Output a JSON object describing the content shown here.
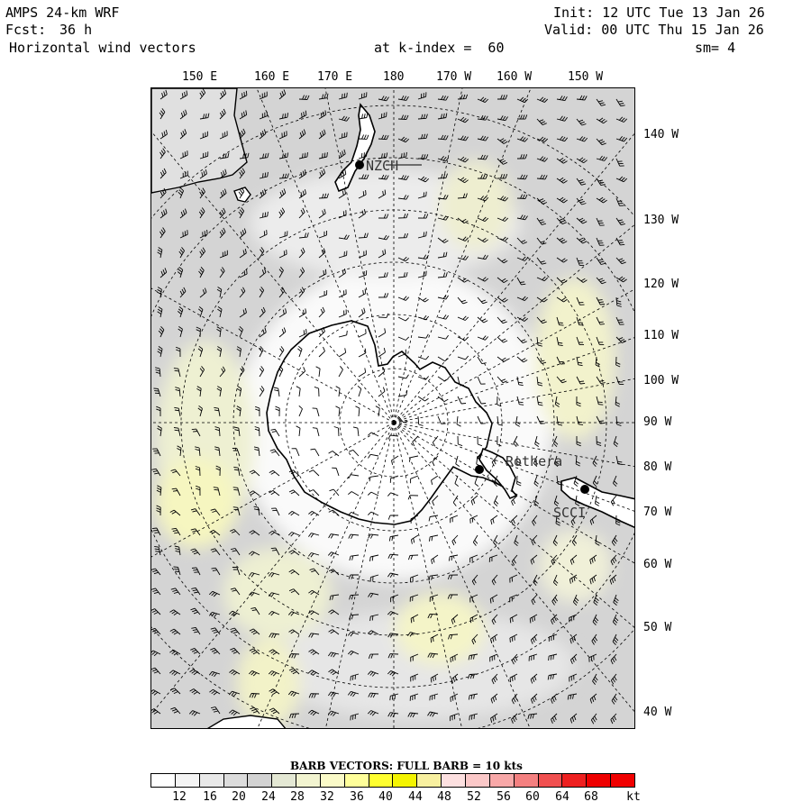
{
  "header": {
    "model": "AMPS 24-km WRF",
    "fcst_label": "Fcst:",
    "fcst_value": "36 h",
    "field": "Horizontal wind vectors",
    "init": "Init: 12 UTC Tue 13 Jan 26",
    "valid": "Valid: 00 UTC Thu 15 Jan 26",
    "kindex": "at k-index =  60",
    "sm": "sm= 4"
  },
  "lon_top": [
    "150 E",
    "160 E",
    "170 E",
    "180",
    "170 W",
    "160 W",
    "150 W"
  ],
  "lon_right": [
    "140 W",
    "130 W",
    "120 W",
    "110 W",
    "100 W",
    "90 W",
    "80 W",
    "70 W",
    "60 W",
    "50 W",
    "40 W"
  ],
  "stations": [
    {
      "name": "NZCH"
    },
    {
      "name": "Rothera"
    },
    {
      "name": "SCCI"
    }
  ],
  "legend": {
    "title": "BARB VECTORS:  FULL BARB = 10 kts",
    "labels": [
      "12",
      "16",
      "20",
      "24",
      "28",
      "32",
      "36",
      "40",
      "44",
      "48",
      "52",
      "56",
      "60",
      "64",
      "68",
      "kt"
    ],
    "colors": [
      "#ffffff",
      "#f4f4f4",
      "#e8e8e8",
      "#dcdcdc",
      "#d2d2d2",
      "#e4e8d4",
      "#f2f4d0",
      "#fafac8",
      "#ffff9a",
      "#ffff30",
      "#f4f400",
      "#f8f0a0",
      "#fde0e0",
      "#fbc8c8",
      "#f8a8a8",
      "#f48080",
      "#f05050",
      "#ee2020",
      "#ee0000",
      "#f00000"
    ]
  },
  "colors": {
    "land": "#ffffff",
    "ocean_shade": "#cfcfcf",
    "jet_shade": "#f6f6c0",
    "coast": "#000000"
  }
}
